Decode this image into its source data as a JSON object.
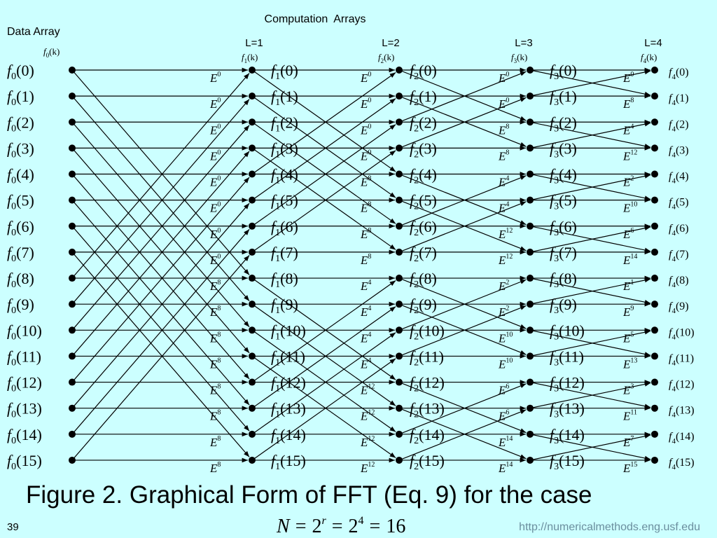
{
  "header": {
    "title": "Computation  Arrays",
    "data_label": "Data Array"
  },
  "function": "f",
  "header_arg": "(k)",
  "twiddle": "E",
  "columns": [
    {
      "sub": "0",
      "args": [
        "(0)",
        "(1)",
        "(2)",
        "(3)",
        "(4)",
        "(5)",
        "(6)",
        "(7)",
        "(8)",
        "(9)",
        "(10)",
        "(11)",
        "(12)",
        "(13)",
        "(14)",
        "(15)"
      ]
    },
    {
      "level": "L=1",
      "sub": "1",
      "args": [
        "(0)",
        "(1)",
        "(2)",
        "(3)",
        "(4)",
        "(5)",
        "(6)",
        "(7)",
        "(8)",
        "(9)",
        "(10)",
        "(11)",
        "(12)",
        "(13)",
        "(14)",
        "(15)"
      ],
      "exponents": [
        "0",
        "0",
        "0",
        "0",
        "0",
        "0",
        "0",
        "0",
        "8",
        "8",
        "8",
        "8",
        "8",
        "8",
        "8",
        "8"
      ]
    },
    {
      "level": "L=2",
      "sub": "2",
      "args": [
        "(0)",
        "(1)",
        "(2)",
        "(3)",
        "(4)",
        "(5)",
        "(6)",
        "(7)",
        "(8)",
        "(9)",
        "(10)",
        "(11)",
        "(12)",
        "(13)",
        "(14)",
        "(15)"
      ],
      "exponents": [
        "0",
        "0",
        "0",
        "0",
        "8",
        "8",
        "8",
        "8",
        "4",
        "4",
        "4",
        "4",
        "12",
        "12",
        "12",
        "12"
      ]
    },
    {
      "level": "L=3",
      "sub": "3",
      "args": [
        "(0)",
        "(1)",
        "(2)",
        "(3)",
        "(4)",
        "(5)",
        "(6)",
        "(7)",
        "(8)",
        "(9)",
        "(10)",
        "(11)",
        "(12)",
        "(13)",
        "(14)",
        "(15)"
      ],
      "exponents": [
        "0",
        "0",
        "8",
        "8",
        "4",
        "4",
        "12",
        "12",
        "2",
        "2",
        "10",
        "10",
        "6",
        "6",
        "14",
        "14"
      ]
    },
    {
      "level": "L=4",
      "sub": "4",
      "args": [
        "(0)",
        "(1)",
        "(2)",
        "(3)",
        "(4)",
        "(5)",
        "(6)",
        "(7)",
        "(8)",
        "(9)",
        "(10)",
        "(11)",
        "(12)",
        "(13)",
        "(14)",
        "(15)"
      ],
      "exponents": [
        "0",
        "8",
        "4",
        "12",
        "2",
        "10",
        "6",
        "14",
        "1",
        "9",
        "5",
        "13",
        "3",
        "11",
        "7",
        "15"
      ]
    }
  ],
  "caption": "Figure 2. Graphical Form of FFT (Eq. 9) for the case",
  "formula": [
    "N",
    "=",
    "2",
    "r",
    "=",
    "2",
    "4",
    "=",
    "16"
  ],
  "page_number": "39",
  "url": "http://numericalmethods.eng.usf.edu"
}
